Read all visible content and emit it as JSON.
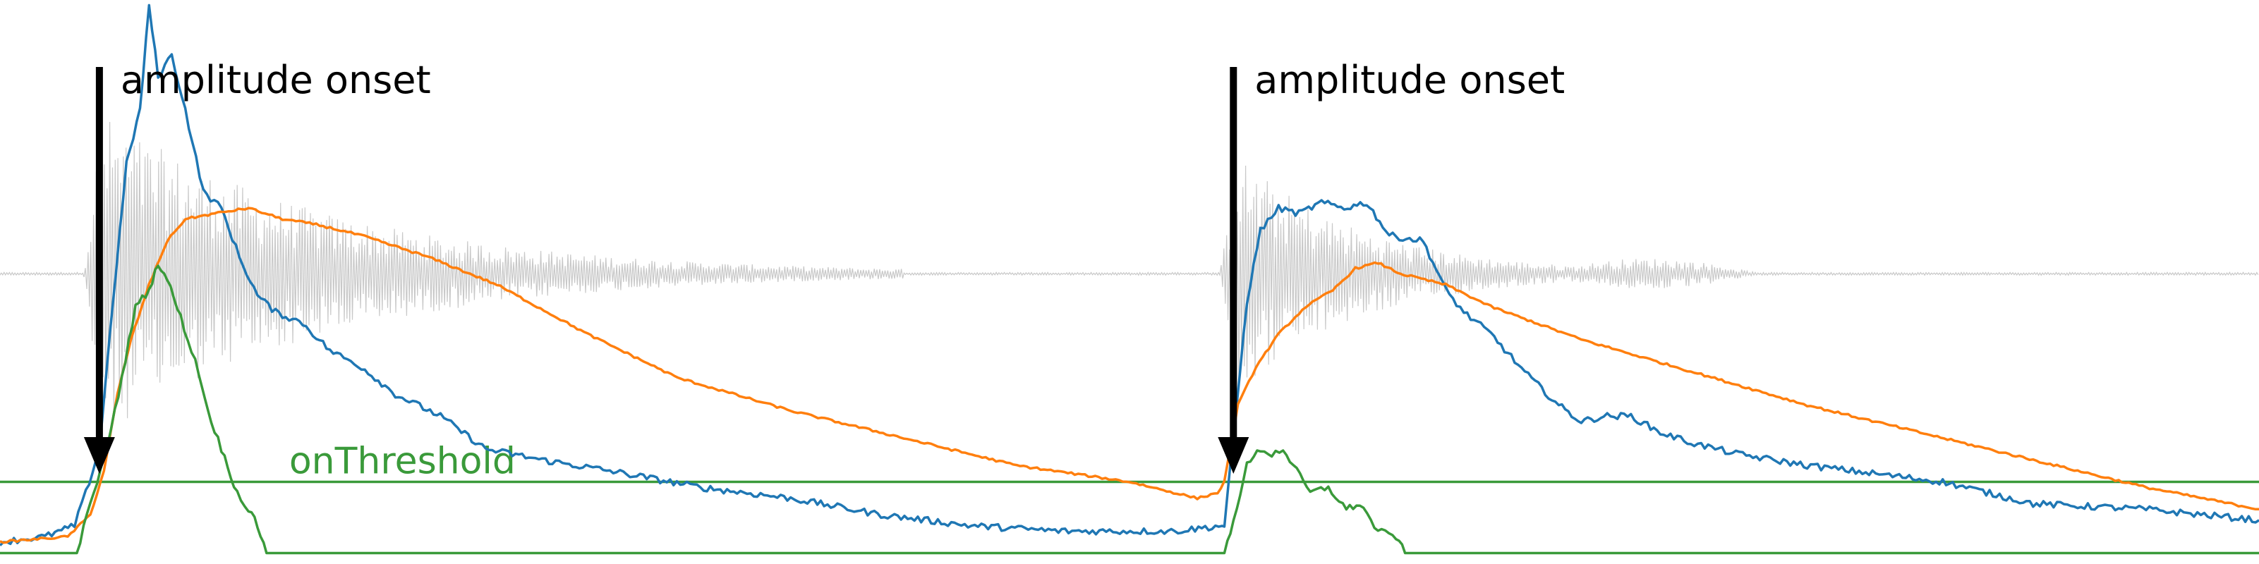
{
  "chart_data": {
    "type": "line",
    "title": "",
    "xlabel": "",
    "ylabel": "",
    "xlim": [
      0,
      1
    ],
    "ylim": [
      -0.03,
      1.0
    ],
    "grid": false,
    "legend": "none",
    "threshold": {
      "label": "onThreshold",
      "value": 0.12,
      "color": "#3a9a3a"
    },
    "annotations": [
      {
        "text": "amplitude onset",
        "x": 0.044
      },
      {
        "text": "amplitude onset",
        "x": 0.546
      }
    ],
    "waveform": {
      "color": "#c8c8c8",
      "baseline": 0.5
    },
    "series": [
      {
        "key": "fast",
        "color": "#1f77b4",
        "x": [
          0.0,
          0.02,
          0.033,
          0.038,
          0.044,
          0.05,
          0.056,
          0.062,
          0.066,
          0.07,
          0.076,
          0.082,
          0.09,
          0.098,
          0.106,
          0.114,
          0.122,
          0.134,
          0.146,
          0.16,
          0.175,
          0.195,
          0.215,
          0.24,
          0.27,
          0.31,
          0.35,
          0.39,
          0.43,
          0.47,
          0.52,
          0.541,
          0.542,
          0.546,
          0.552,
          0.558,
          0.566,
          0.575,
          0.585,
          0.595,
          0.605,
          0.615,
          0.63,
          0.64,
          0.648,
          0.66,
          0.675,
          0.69,
          0.7,
          0.71,
          0.722,
          0.735,
          0.75,
          0.77,
          0.8,
          0.82,
          0.86,
          0.9,
          0.95,
          1.0
        ],
        "y": [
          0.01,
          0.02,
          0.04,
          0.1,
          0.18,
          0.45,
          0.7,
          0.8,
          0.99,
          0.86,
          0.9,
          0.8,
          0.65,
          0.62,
          0.53,
          0.46,
          0.43,
          0.41,
          0.36,
          0.33,
          0.28,
          0.24,
          0.18,
          0.16,
          0.14,
          0.11,
          0.09,
          0.06,
          0.04,
          0.03,
          0.03,
          0.04,
          0.04,
          0.2,
          0.45,
          0.58,
          0.62,
          0.61,
          0.63,
          0.62,
          0.63,
          0.57,
          0.56,
          0.47,
          0.43,
          0.39,
          0.32,
          0.26,
          0.23,
          0.24,
          0.24,
          0.21,
          0.19,
          0.17,
          0.15,
          0.14,
          0.12,
          0.08,
          0.07,
          0.05
        ]
      },
      {
        "key": "slow",
        "color": "#ff7f0e",
        "x": [
          0.0,
          0.03,
          0.04,
          0.046,
          0.052,
          0.058,
          0.066,
          0.074,
          0.082,
          0.095,
          0.11,
          0.125,
          0.14,
          0.16,
          0.19,
          0.22,
          0.26,
          0.3,
          0.35,
          0.4,
          0.45,
          0.5,
          0.53,
          0.539,
          0.542,
          0.548,
          0.556,
          0.566,
          0.578,
          0.59,
          0.6,
          0.61,
          0.62,
          0.64,
          0.66,
          0.7,
          0.75,
          0.8,
          0.85,
          0.9,
          0.95,
          1.0
        ],
        "y": [
          0.01,
          0.02,
          0.06,
          0.14,
          0.28,
          0.38,
          0.48,
          0.56,
          0.6,
          0.61,
          0.62,
          0.6,
          0.59,
          0.57,
          0.53,
          0.48,
          0.39,
          0.31,
          0.25,
          0.2,
          0.15,
          0.12,
          0.09,
          0.1,
          0.12,
          0.26,
          0.33,
          0.39,
          0.44,
          0.47,
          0.51,
          0.52,
          0.5,
          0.48,
          0.44,
          0.38,
          0.32,
          0.26,
          0.21,
          0.16,
          0.11,
          0.07
        ]
      },
      {
        "key": "onset",
        "color": "#3a9a3a",
        "x": [
          0.0,
          0.034,
          0.04,
          0.046,
          0.054,
          0.06,
          0.066,
          0.07,
          0.074,
          0.08,
          0.088,
          0.092,
          0.098,
          0.105,
          0.11,
          0.114,
          0.118,
          0.542,
          0.546,
          0.552,
          0.558,
          0.563,
          0.568,
          0.574,
          0.58,
          0.588,
          0.596,
          0.602,
          0.61,
          0.618,
          0.622,
          1.0
        ],
        "y": [
          -0.01,
          -0.01,
          0.08,
          0.16,
          0.31,
          0.44,
          0.47,
          0.52,
          0.49,
          0.42,
          0.32,
          0.25,
          0.18,
          0.1,
          0.07,
          0.04,
          -0.01,
          -0.01,
          0.05,
          0.15,
          0.18,
          0.17,
          0.18,
          0.14,
          0.1,
          0.11,
          0.07,
          0.08,
          0.03,
          0.02,
          -0.01,
          -0.01
        ]
      }
    ]
  }
}
